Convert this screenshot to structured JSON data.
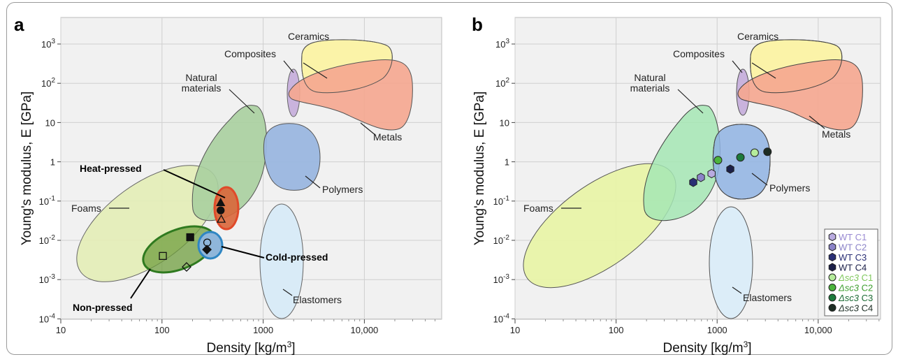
{
  "chart_data": [
    {
      "panel": "a",
      "type": "scatter",
      "xlabel": "Density [kg/m3]",
      "ylabel": "Young's modulus, E [GPa]",
      "x_scale": "log",
      "y_scale": "log",
      "xlim": [
        10,
        60000
      ],
      "ylim": [
        7e-05,
        3000
      ],
      "x_ticks": [
        "10",
        "100",
        "1000",
        "10,000"
      ],
      "y_ticks": [
        "10-4",
        "10-3",
        "10-2",
        "10-1",
        "1",
        "10",
        "102",
        "103"
      ],
      "grid": true,
      "material_regions": [
        {
          "name": "Foams",
          "color": "#e3edb6"
        },
        {
          "name": "Natural materials",
          "color": "#a9cf9f"
        },
        {
          "name": "Polymers",
          "color": "#9ab6df"
        },
        {
          "name": "Elastomers",
          "color": "#d9ebf7"
        },
        {
          "name": "Composites",
          "color": "#c9b3dd"
        },
        {
          "name": "Ceramics",
          "color": "#fbf3a8"
        },
        {
          "name": "Metals",
          "color": "#f5a68f"
        }
      ],
      "processing_groups": [
        {
          "name": "Heat-pressed",
          "color": "#e04a2a"
        },
        {
          "name": "Cold-pressed",
          "color": "#3a8dc8"
        },
        {
          "name": "Non-pressed",
          "color": "#3f8a2f"
        }
      ],
      "points": [
        {
          "group": "Heat-pressed",
          "marker": "triangle-filled",
          "x": 380,
          "y": 0.09
        },
        {
          "group": "Heat-pressed",
          "marker": "circle-filled",
          "x": 380,
          "y": 0.058
        },
        {
          "group": "Heat-pressed",
          "marker": "triangle-open",
          "x": 385,
          "y": 0.034
        },
        {
          "group": "Cold-pressed",
          "marker": "circle-open",
          "x": 280,
          "y": 0.0088
        },
        {
          "group": "Cold-pressed",
          "marker": "diamond-filled",
          "x": 278,
          "y": 0.0058
        },
        {
          "group": "Non-pressed",
          "marker": "square-filled",
          "x": 190,
          "y": 0.012
        },
        {
          "group": "Non-pressed",
          "marker": "square-open",
          "x": 102,
          "y": 0.004
        },
        {
          "group": "Non-pressed",
          "marker": "diamond-open",
          "x": 175,
          "y": 0.0021
        }
      ]
    },
    {
      "panel": "b",
      "type": "scatter",
      "xlabel": "Density [kg/m3]",
      "ylabel": "Young's modulus, E [GPa]",
      "x_scale": "log",
      "y_scale": "log",
      "xlim": [
        10,
        60000
      ],
      "ylim": [
        7e-05,
        3000
      ],
      "x_ticks": [
        "10",
        "100",
        "1000",
        "10,000"
      ],
      "y_ticks": [
        "10-4",
        "10-3",
        "10-2",
        "10-1",
        "1",
        "10",
        "102",
        "103"
      ],
      "grid": true,
      "legend_position": "bottom-right",
      "material_regions": [
        {
          "name": "Foams",
          "color": "#e8f3a8"
        },
        {
          "name": "Natural materials",
          "color": "#a4e6b4"
        },
        {
          "name": "Polymers",
          "color": "#8fb3e3"
        },
        {
          "name": "Elastomers",
          "color": "#dcedf8"
        },
        {
          "name": "Composites",
          "color": "#c9b3dd"
        },
        {
          "name": "Ceramics",
          "color": "#fbf3a8"
        },
        {
          "name": "Metals",
          "color": "#f5a68f"
        }
      ],
      "series": [
        {
          "name": "WT C1",
          "prefix": "WT",
          "suffix": " C1",
          "marker": "hexagon",
          "color": "#b9abe0",
          "text_color": "#9a8bd3",
          "x": [
            880
          ],
          "y": [
            0.5
          ]
        },
        {
          "name": "WT C2",
          "prefix": "WT",
          "suffix": " C2",
          "marker": "hexagon",
          "color": "#8b83c8",
          "text_color": "#8b83c8",
          "x": [
            690
          ],
          "y": [
            0.4
          ]
        },
        {
          "name": "WT C3",
          "prefix": "WT",
          "suffix": " C3",
          "marker": "hexagon",
          "color": "#2a2f75",
          "text_color": "#2a2f75",
          "x": [
            580
          ],
          "y": [
            0.3
          ]
        },
        {
          "name": "WT C4",
          "prefix": "WT",
          "suffix": " C4",
          "marker": "hexagon",
          "color": "#1b1f48",
          "text_color": "#1b1f48",
          "x": [
            1350
          ],
          "y": [
            0.65
          ]
        },
        {
          "name": "Δsc3 C1",
          "prefix": "Δsc3",
          "suffix": " C1",
          "marker": "circle",
          "color": "#b5ec9b",
          "text_color": "#7fc85c",
          "x": [
            2350
          ],
          "y": [
            1.7
          ]
        },
        {
          "name": "Δsc3 C2",
          "prefix": "Δsc3",
          "suffix": " C2",
          "marker": "circle",
          "color": "#4bb43c",
          "text_color": "#3d9e2f",
          "x": [
            1020
          ],
          "y": [
            1.1
          ]
        },
        {
          "name": "Δsc3 C3",
          "prefix": "Δsc3",
          "suffix": " C3",
          "marker": "circle",
          "color": "#1c7a3c",
          "text_color": "#1c6b34",
          "x": [
            1700
          ],
          "y": [
            1.3
          ]
        },
        {
          "name": "Δsc3 C4",
          "prefix": "Δsc3",
          "suffix": " C4",
          "marker": "circle",
          "color": "#1d2d24",
          "text_color": "#1d2d24",
          "x": [
            3150
          ],
          "y": [
            1.8
          ]
        }
      ]
    }
  ],
  "panel_a": {
    "label": "a",
    "ylabel": "Young's modulus, E [GPa]",
    "xlabel_main": "Density [kg/m",
    "xlabel_sup": "3",
    "xlabel_end": "]",
    "regions": {
      "ceramics": "Ceramics",
      "composites": "Composites",
      "natural_1": "Natural",
      "natural_2": "materials",
      "metals": "Metals",
      "polymers": "Polymers",
      "foams": "Foams",
      "elastomers": "Elastomers"
    },
    "groups": {
      "heat": "Heat-pressed",
      "cold": "Cold-pressed",
      "non": "Non-pressed"
    }
  },
  "panel_b": {
    "label": "b",
    "ylabel": "Young's modulus, E [GPa]",
    "xlabel_main": "Density [kg/m",
    "xlabel_sup": "3",
    "xlabel_end": "]",
    "regions": {
      "ceramics": "Ceramics",
      "composites": "Composites",
      "natural_1": "Natural",
      "natural_2": "materials",
      "metals": "Metals",
      "polymers": "Polymers",
      "foams": "Foams",
      "elastomers": "Elastomers"
    }
  },
  "ticks": {
    "x": [
      "10",
      "100",
      "1000",
      "10,000"
    ],
    "y_base": "10",
    "y_exp": [
      "-4",
      "-3",
      "-2",
      "-1",
      "",
      "",
      "2",
      "3"
    ],
    "y_plain": [
      "",
      "",
      "",
      "",
      "1",
      "10",
      "",
      ""
    ]
  }
}
